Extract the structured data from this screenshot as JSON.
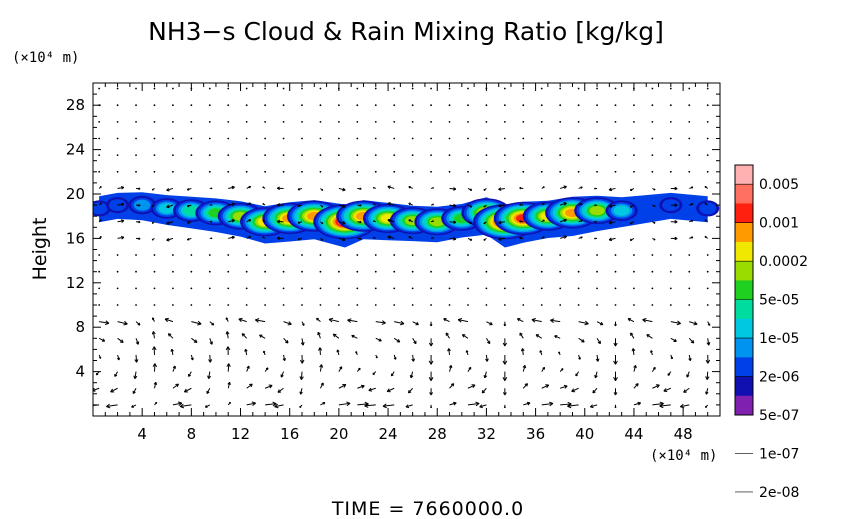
{
  "chart_data": {
    "type": "heatmap",
    "title": "NH3−s Cloud & Rain Mixing Ratio [kg/kg]",
    "xunit": "(×10⁴ m)",
    "yunit": "(×10⁴ m)",
    "ylabel": "Height",
    "xlabel": "",
    "xlim": [
      0,
      51
    ],
    "ylim": [
      0,
      30
    ],
    "xticks": [
      4,
      8,
      12,
      16,
      20,
      24,
      28,
      32,
      36,
      40,
      44,
      48
    ],
    "yticks": [
      4,
      8,
      12,
      16,
      20,
      24,
      28
    ],
    "grid": false,
    "legend": "right",
    "colorbar": {
      "labels": [
        "0.005",
        "0.001",
        "0.0002",
        "5e-05",
        "1e-05",
        "2e-06",
        "5e-07",
        "1e-07",
        "2e-08"
      ],
      "colors": [
        "#ffb0b0",
        "#ff7060",
        "#ff2010",
        "#ff9a00",
        "#f0e800",
        "#9adc00",
        "#20d020",
        "#00dca0",
        "#00c8e0",
        "#0094f0",
        "#0040e8",
        "#1010b0",
        "#8020b0"
      ]
    },
    "cloud_layer": [
      {
        "x": 0.5,
        "y": 18.7,
        "level": 2
      },
      {
        "x": 2.0,
        "y": 19.0,
        "level": 2
      },
      {
        "x": 4.0,
        "y": 19.0,
        "level": 3
      },
      {
        "x": 6.0,
        "y": 18.7,
        "level": 4
      },
      {
        "x": 8.0,
        "y": 18.5,
        "level": 5
      },
      {
        "x": 10.0,
        "y": 18.3,
        "level": 6
      },
      {
        "x": 12.0,
        "y": 18.0,
        "level": 7
      },
      {
        "x": 14.0,
        "y": 17.5,
        "level": 8
      },
      {
        "x": 16.0,
        "y": 17.8,
        "level": 9
      },
      {
        "x": 18.0,
        "y": 18.0,
        "level": 9
      },
      {
        "x": 20.5,
        "y": 17.5,
        "level": 11
      },
      {
        "x": 22.0,
        "y": 18.0,
        "level": 9
      },
      {
        "x": 24.0,
        "y": 17.8,
        "level": 8
      },
      {
        "x": 26.0,
        "y": 17.6,
        "level": 7
      },
      {
        "x": 28.0,
        "y": 17.5,
        "level": 7
      },
      {
        "x": 30.0,
        "y": 17.8,
        "level": 6
      },
      {
        "x": 32.0,
        "y": 18.3,
        "level": 8
      },
      {
        "x": 33.5,
        "y": 17.5,
        "level": 11
      },
      {
        "x": 35.0,
        "y": 17.8,
        "level": 10
      },
      {
        "x": 37.0,
        "y": 18.0,
        "level": 8
      },
      {
        "x": 39.0,
        "y": 18.3,
        "level": 9
      },
      {
        "x": 41.0,
        "y": 18.5,
        "level": 7
      },
      {
        "x": 43.0,
        "y": 18.5,
        "level": 4
      },
      {
        "x": 47.0,
        "y": 19.0,
        "level": 2
      },
      {
        "x": 50.0,
        "y": 18.7,
        "level": 2
      }
    ]
  },
  "footer": {
    "time_text": "TIME  =  7660000.0"
  }
}
